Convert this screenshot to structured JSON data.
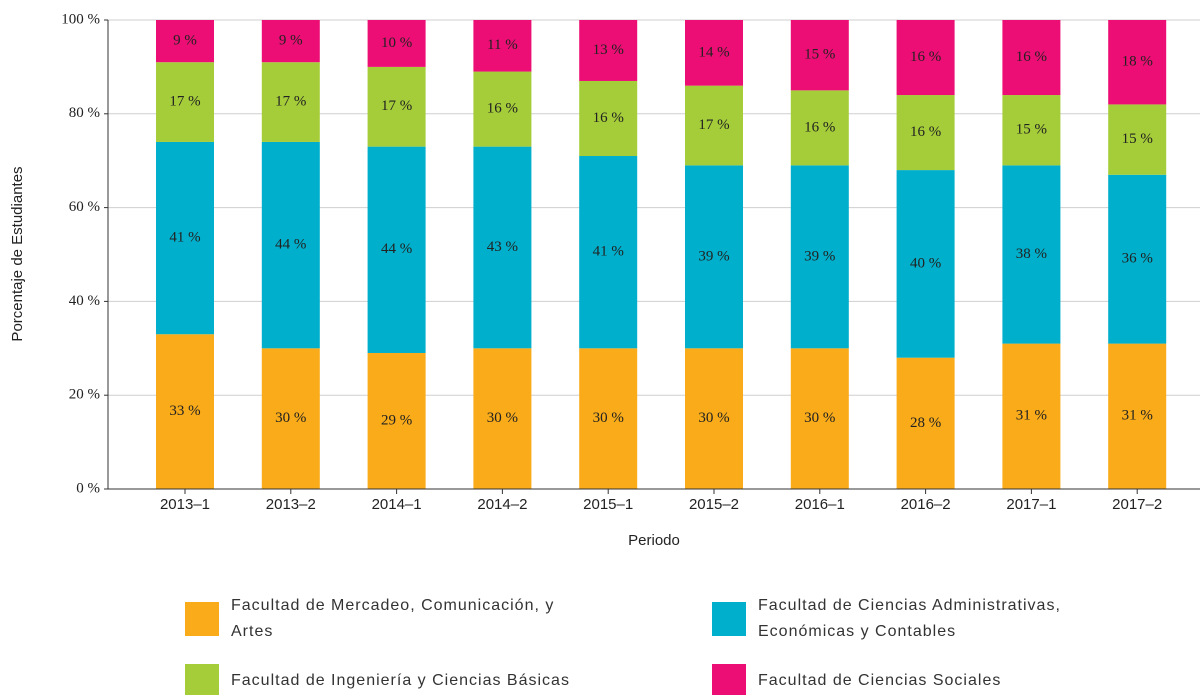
{
  "chart_data": {
    "type": "stacked_bar",
    "xlabel": "Periodo",
    "ylabel": "Porcentaje de Estudiantes",
    "categories": [
      "2013–1",
      "2013–2",
      "2014–1",
      "2014–2",
      "2015–1",
      "2015–2",
      "2016–1",
      "2016–2",
      "2017–1",
      "2017–2"
    ],
    "ylim": [
      0,
      100
    ],
    "yticks": [
      {
        "value": 0,
        "label": "0 %"
      },
      {
        "value": 20,
        "label": "20 %"
      },
      {
        "value": 40,
        "label": "40 %"
      },
      {
        "value": 60,
        "label": "60 %"
      },
      {
        "value": 80,
        "label": "80 %"
      },
      {
        "value": 100,
        "label": "100 %"
      }
    ],
    "grid": true,
    "legend": "bottom",
    "series": [
      {
        "name": "Facultad de Mercadeo, Comunicación, y Artes",
        "color": "#f9ab19",
        "values": [
          33,
          30,
          29,
          30,
          30,
          30,
          30,
          28,
          31,
          31
        ],
        "value_labels": [
          "33 %",
          "30 %",
          "29 %",
          "30 %",
          "30 %",
          "30 %",
          "30 %",
          "28 %",
          "31 %",
          "31 %"
        ]
      },
      {
        "name": "Facultad de Ciencias Administrativas, Económicas y Contables",
        "color": "#00afcb",
        "values": [
          41,
          44,
          44,
          43,
          41,
          39,
          39,
          40,
          38,
          36
        ],
        "value_labels": [
          "41 %",
          "44 %",
          "44 %",
          "43 %",
          "41 %",
          "39 %",
          "39 %",
          "40 %",
          "38 %",
          "36 %"
        ]
      },
      {
        "name": "Facultad de Ingeniería y Ciencias Básicas",
        "color": "#a5cd39",
        "values": [
          17,
          17,
          17,
          16,
          16,
          17,
          16,
          16,
          15,
          15
        ],
        "value_labels": [
          "17 %",
          "17 %",
          "17 %",
          "16 %",
          "16 %",
          "17 %",
          "16 %",
          "16 %",
          "15 %",
          "15 %"
        ]
      },
      {
        "name": "Facultad de Ciencias Sociales",
        "color": "#ec0e74",
        "values": [
          9,
          9,
          10,
          11,
          13,
          14,
          15,
          16,
          16,
          18
        ],
        "value_labels": [
          "9 %",
          "9 %",
          "10 %",
          "11 %",
          "13 %",
          "14 %",
          "15 %",
          "16 %",
          "16 %",
          "18 %"
        ]
      }
    ]
  }
}
